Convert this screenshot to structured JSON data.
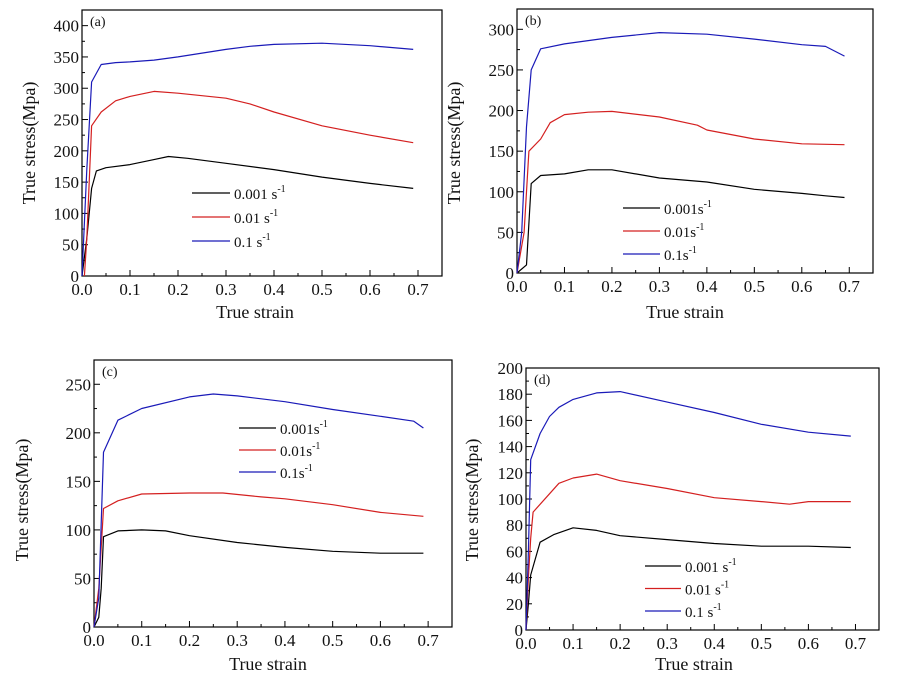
{
  "chart_data": [
    {
      "type": "line",
      "panel_label": "(a)",
      "xlabel": "True strain",
      "ylabel": "True stress(Mpa)",
      "xlim": [
        0,
        0.75
      ],
      "ylim": [
        0,
        425
      ],
      "xticks": [
        0.0,
        0.1,
        0.2,
        0.3,
        0.4,
        0.5,
        0.6,
        0.7
      ],
      "yticks": [
        0,
        50,
        100,
        150,
        200,
        250,
        300,
        350,
        400
      ],
      "grid": false,
      "legend_position": "center-bottom",
      "series": [
        {
          "name": "0.001 s",
          "sup": "-1",
          "color": "#000000",
          "points": [
            [
              0,
              0
            ],
            [
              0.01,
              60
            ],
            [
              0.02,
              140
            ],
            [
              0.03,
              168
            ],
            [
              0.05,
              173
            ],
            [
              0.1,
              178
            ],
            [
              0.15,
              186
            ],
            [
              0.18,
              191
            ],
            [
              0.22,
              188
            ],
            [
              0.3,
              180
            ],
            [
              0.4,
              170
            ],
            [
              0.5,
              158
            ],
            [
              0.6,
              148
            ],
            [
              0.69,
              140
            ]
          ]
        },
        {
          "name": "0.01 s",
          "sup": "-1",
          "color": "#d42020",
          "points": [
            [
              0.005,
              0
            ],
            [
              0.01,
              60
            ],
            [
              0.02,
              240
            ],
            [
              0.04,
              262
            ],
            [
              0.07,
              280
            ],
            [
              0.1,
              287
            ],
            [
              0.15,
              295
            ],
            [
              0.2,
              292
            ],
            [
              0.3,
              284
            ],
            [
              0.35,
              275
            ],
            [
              0.4,
              262
            ],
            [
              0.5,
              240
            ],
            [
              0.6,
              225
            ],
            [
              0.69,
              213
            ]
          ]
        },
        {
          "name": "0.1 s",
          "sup": "-1",
          "color": "#1a1ab8",
          "points": [
            [
              0,
              0
            ],
            [
              0.01,
              170
            ],
            [
              0.02,
              310
            ],
            [
              0.04,
              338
            ],
            [
              0.07,
              341
            ],
            [
              0.1,
              342
            ],
            [
              0.15,
              345
            ],
            [
              0.2,
              350
            ],
            [
              0.3,
              362
            ],
            [
              0.35,
              367
            ],
            [
              0.4,
              370
            ],
            [
              0.5,
              372
            ],
            [
              0.6,
              368
            ],
            [
              0.69,
              362
            ]
          ]
        }
      ]
    },
    {
      "type": "line",
      "panel_label": "(b)",
      "xlabel": "True strain",
      "ylabel": "True stress(Mpa)",
      "xlim": [
        0,
        0.75
      ],
      "ylim": [
        0,
        325
      ],
      "xticks": [
        0.0,
        0.1,
        0.2,
        0.3,
        0.4,
        0.5,
        0.6,
        0.7
      ],
      "yticks": [
        0,
        50,
        100,
        150,
        200,
        250,
        300
      ],
      "grid": false,
      "legend_position": "center-bottom",
      "series": [
        {
          "name": "0.001s",
          "sup": "-1",
          "color": "#000000",
          "points": [
            [
              0,
              0
            ],
            [
              0.02,
              10
            ],
            [
              0.03,
              110
            ],
            [
              0.05,
              120
            ],
            [
              0.1,
              122
            ],
            [
              0.15,
              127
            ],
            [
              0.2,
              127
            ],
            [
              0.3,
              117
            ],
            [
              0.4,
              112
            ],
            [
              0.5,
              103
            ],
            [
              0.6,
              98
            ],
            [
              0.65,
              95
            ],
            [
              0.69,
              93
            ]
          ]
        },
        {
          "name": "0.01s",
          "sup": "-1",
          "color": "#d42020",
          "points": [
            [
              0,
              0
            ],
            [
              0.015,
              50
            ],
            [
              0.025,
              150
            ],
            [
              0.05,
              165
            ],
            [
              0.07,
              185
            ],
            [
              0.1,
              195
            ],
            [
              0.15,
              198
            ],
            [
              0.2,
              199
            ],
            [
              0.3,
              192
            ],
            [
              0.38,
              182
            ],
            [
              0.4,
              176
            ],
            [
              0.5,
              165
            ],
            [
              0.6,
              159
            ],
            [
              0.69,
              158
            ]
          ]
        },
        {
          "name": "0.1s",
          "sup": "-1",
          "color": "#1a1ab8",
          "points": [
            [
              0,
              0
            ],
            [
              0.01,
              50
            ],
            [
              0.02,
              180
            ],
            [
              0.03,
              250
            ],
            [
              0.05,
              276
            ],
            [
              0.1,
              282
            ],
            [
              0.2,
              290
            ],
            [
              0.3,
              296
            ],
            [
              0.4,
              294
            ],
            [
              0.5,
              288
            ],
            [
              0.6,
              281
            ],
            [
              0.65,
              279
            ],
            [
              0.69,
              267
            ]
          ]
        }
      ]
    },
    {
      "type": "line",
      "panel_label": "(c)",
      "xlabel": "True strain",
      "ylabel": "True stress(Mpa)",
      "xlim": [
        0,
        0.75
      ],
      "ylim": [
        0,
        275
      ],
      "xticks": [
        0.0,
        0.1,
        0.2,
        0.3,
        0.4,
        0.5,
        0.6,
        0.7
      ],
      "yticks": [
        0,
        50,
        100,
        150,
        200,
        250
      ],
      "grid": false,
      "legend_position": "top-right",
      "series": [
        {
          "name": "0.001s",
          "sup": "-1",
          "color": "#000000",
          "points": [
            [
              0,
              0
            ],
            [
              0.01,
              10
            ],
            [
              0.015,
              40
            ],
            [
              0.02,
              93
            ],
            [
              0.05,
              99
            ],
            [
              0.1,
              100
            ],
            [
              0.15,
              99
            ],
            [
              0.2,
              94
            ],
            [
              0.3,
              87
            ],
            [
              0.4,
              82
            ],
            [
              0.5,
              78
            ],
            [
              0.6,
              76
            ],
            [
              0.69,
              76
            ]
          ]
        },
        {
          "name": "0.01s",
          "sup": "-1",
          "color": "#d42020",
          "points": [
            [
              0,
              0
            ],
            [
              0.01,
              40
            ],
            [
              0.02,
              122
            ],
            [
              0.05,
              130
            ],
            [
              0.1,
              137
            ],
            [
              0.2,
              138
            ],
            [
              0.27,
              138
            ],
            [
              0.35,
              134
            ],
            [
              0.4,
              132
            ],
            [
              0.5,
              126
            ],
            [
              0.6,
              118
            ],
            [
              0.69,
              114
            ]
          ]
        },
        {
          "name": "0.1s",
          "sup": "-1",
          "color": "#1a1ab8",
          "points": [
            [
              0,
              0
            ],
            [
              0.01,
              30
            ],
            [
              0.02,
              180
            ],
            [
              0.05,
              213
            ],
            [
              0.1,
              225
            ],
            [
              0.2,
              237
            ],
            [
              0.25,
              240
            ],
            [
              0.3,
              238
            ],
            [
              0.4,
              232
            ],
            [
              0.5,
              224
            ],
            [
              0.6,
              217
            ],
            [
              0.67,
              212
            ],
            [
              0.69,
              205
            ]
          ]
        }
      ]
    },
    {
      "type": "line",
      "panel_label": "(d)",
      "xlabel": "True strain",
      "ylabel": "True stress(Mpa)",
      "xlim": [
        0,
        0.75
      ],
      "ylim": [
        0,
        200
      ],
      "xticks": [
        0.0,
        0.1,
        0.2,
        0.3,
        0.4,
        0.5,
        0.6,
        0.7
      ],
      "yticks": [
        0,
        20,
        40,
        60,
        80,
        100,
        120,
        140,
        160,
        180,
        200
      ],
      "grid": false,
      "legend_position": "center-bottom",
      "series": [
        {
          "name": "0.001 s",
          "sup": "-1",
          "color": "#000000",
          "points": [
            [
              0,
              0
            ],
            [
              0.005,
              20
            ],
            [
              0.01,
              42
            ],
            [
              0.03,
              67
            ],
            [
              0.06,
              73
            ],
            [
              0.1,
              78
            ],
            [
              0.15,
              76
            ],
            [
              0.2,
              72
            ],
            [
              0.3,
              69
            ],
            [
              0.4,
              66
            ],
            [
              0.5,
              64
            ],
            [
              0.6,
              64
            ],
            [
              0.69,
              63
            ]
          ]
        },
        {
          "name": "0.01 s",
          "sup": "-1",
          "color": "#d42020",
          "points": [
            [
              0,
              0
            ],
            [
              0.005,
              40
            ],
            [
              0.01,
              70
            ],
            [
              0.015,
              90
            ],
            [
              0.05,
              104
            ],
            [
              0.07,
              112
            ],
            [
              0.1,
              116
            ],
            [
              0.15,
              119
            ],
            [
              0.2,
              114
            ],
            [
              0.3,
              108
            ],
            [
              0.4,
              101
            ],
            [
              0.5,
              98
            ],
            [
              0.56,
              96
            ],
            [
              0.6,
              98
            ],
            [
              0.69,
              98
            ]
          ]
        },
        {
          "name": "0.1 s",
          "sup": "-1",
          "color": "#1a1ab8",
          "points": [
            [
              0,
              0
            ],
            [
              0.005,
              60
            ],
            [
              0.01,
              130
            ],
            [
              0.03,
              150
            ],
            [
              0.05,
              163
            ],
            [
              0.07,
              170
            ],
            [
              0.1,
              176
            ],
            [
              0.15,
              181
            ],
            [
              0.2,
              182
            ],
            [
              0.3,
              174
            ],
            [
              0.4,
              166
            ],
            [
              0.5,
              157
            ],
            [
              0.6,
              151
            ],
            [
              0.69,
              148
            ]
          ]
        }
      ]
    }
  ]
}
